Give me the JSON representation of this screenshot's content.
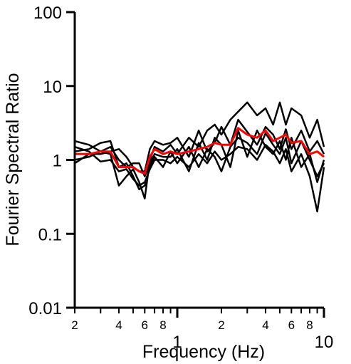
{
  "chart_data": {
    "type": "line",
    "title": "",
    "xlabel": "Frequency (Hz)",
    "ylabel": "Fourier Spectral Ratio",
    "xscale": "log",
    "yscale": "log",
    "xlim": [
      0.2,
      10
    ],
    "ylim": [
      0.01,
      100
    ],
    "grid": false,
    "legend": "none",
    "x_ticks": {
      "major": [
        {
          "value": 1,
          "label": "1"
        },
        {
          "value": 10,
          "label": "10"
        }
      ],
      "minor": [
        {
          "value": 0.2,
          "label": "2"
        },
        {
          "value": 0.4,
          "label": "4"
        },
        {
          "value": 0.6,
          "label": "6"
        },
        {
          "value": 0.8,
          "label": "8"
        },
        {
          "value": 2,
          "label": "2"
        },
        {
          "value": 4,
          "label": "4"
        },
        {
          "value": 6,
          "label": "6"
        },
        {
          "value": 8,
          "label": "8"
        }
      ],
      "unlabeled_minor": [
        0.3,
        0.5,
        0.7,
        0.9,
        3,
        5,
        7,
        9
      ]
    },
    "y_ticks": [
      {
        "value": 100,
        "label": "100"
      },
      {
        "value": 10,
        "label": "10"
      },
      {
        "value": 1,
        "label": "1"
      },
      {
        "value": 0.1,
        "label": "0.1"
      },
      {
        "value": 0.01,
        "label": "0.01"
      }
    ],
    "x": [
      0.2,
      0.25,
      0.3,
      0.35,
      0.4,
      0.45,
      0.5,
      0.55,
      0.6,
      0.65,
      0.7,
      0.8,
      0.9,
      1.0,
      1.2,
      1.4,
      1.6,
      1.8,
      2.0,
      2.3,
      2.6,
      3.0,
      3.5,
      4.0,
      4.5,
      5.0,
      5.5,
      6.0,
      7.0,
      8.0,
      9.0,
      10.0
    ],
    "series": [
      {
        "color": "#000000",
        "values": [
          1.8,
          1.6,
          1.3,
          1.2,
          0.45,
          0.6,
          0.75,
          0.5,
          0.3,
          1.0,
          1.5,
          1.3,
          1.6,
          1.2,
          2.0,
          1.5,
          2.5,
          3.0,
          2.2,
          3.5,
          4.5,
          6.0,
          4.0,
          5.0,
          3.0,
          6.0,
          3.0,
          5.0,
          4.0,
          2.0,
          3.5,
          1.5
        ]
      },
      {
        "color": "#000000",
        "values": [
          1.0,
          1.1,
          1.3,
          1.5,
          1.0,
          0.8,
          0.9,
          0.9,
          0.6,
          0.9,
          1.2,
          1.1,
          1.1,
          1.4,
          0.7,
          1.7,
          1.0,
          2.0,
          1.6,
          0.8,
          2.5,
          1.1,
          2.5,
          1.5,
          1.2,
          1.8,
          1.0,
          2.0,
          0.8,
          1.2,
          0.5,
          1.0
        ]
      },
      {
        "color": "#000000",
        "values": [
          1.3,
          1.4,
          1.7,
          1.8,
          0.8,
          0.9,
          0.6,
          0.4,
          0.45,
          0.8,
          1.1,
          0.8,
          1.3,
          0.9,
          1.5,
          0.8,
          1.4,
          1.1,
          0.7,
          1.5,
          2.0,
          1.7,
          1.2,
          2.3,
          1.6,
          1.2,
          2.0,
          0.9,
          1.8,
          1.0,
          0.6,
          0.9
        ]
      },
      {
        "color": "#000000",
        "values": [
          0.9,
          1.2,
          1.2,
          1.3,
          1.4,
          1.1,
          0.8,
          0.7,
          0.7,
          1.4,
          1.8,
          1.6,
          1.7,
          2.0,
          1.1,
          2.5,
          1.3,
          1.7,
          2.8,
          1.6,
          3.5,
          2.4,
          1.6,
          2.8,
          2.2,
          1.4,
          2.6,
          1.4,
          2.5,
          1.3,
          1.8,
          1.2
        ]
      },
      {
        "color": "#000000",
        "values": [
          1.5,
          1.3,
          0.95,
          1.0,
          0.7,
          0.75,
          0.55,
          0.45,
          0.5,
          0.75,
          1.0,
          1.0,
          0.9,
          1.1,
          0.8,
          1.2,
          0.9,
          1.3,
          1.0,
          1.2,
          1.5,
          1.4,
          1.0,
          1.6,
          1.3,
          0.9,
          1.4,
          0.7,
          1.2,
          0.6,
          0.2,
          0.8
        ]
      },
      {
        "color": "#ff0000",
        "values": [
          1.2,
          1.2,
          1.3,
          1.3,
          0.8,
          0.8,
          0.8,
          0.7,
          0.65,
          1.1,
          1.4,
          1.2,
          1.3,
          1.2,
          1.3,
          1.4,
          1.5,
          1.7,
          1.6,
          1.6,
          2.7,
          2.2,
          2.0,
          2.5,
          1.8,
          2.0,
          2.2,
          1.7,
          1.8,
          1.2,
          1.3,
          1.1
        ]
      }
    ]
  }
}
